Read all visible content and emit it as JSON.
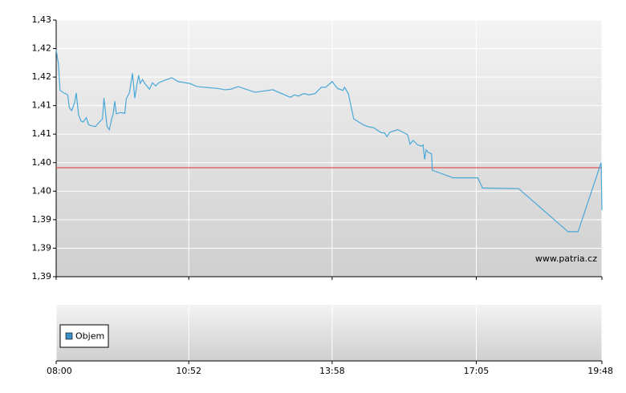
{
  "chart_data": [
    {
      "type": "line",
      "x": [
        "08:00",
        "08:03",
        "08:05",
        "08:10",
        "08:15",
        "08:17",
        "08:20",
        "08:24",
        "08:26",
        "08:29",
        "08:32",
        "08:35",
        "08:39",
        "08:42",
        "08:46",
        "08:51",
        "08:56",
        "09:00",
        "09:02",
        "09:06",
        "09:09",
        "09:12",
        "09:14",
        "09:16",
        "09:18",
        "09:23",
        "09:29",
        "09:31",
        "09:35",
        "09:39",
        "09:42",
        "09:45",
        "09:47",
        "09:49",
        "09:52",
        "09:55",
        "10:01",
        "10:05",
        "10:09",
        "10:13",
        "10:21",
        "10:30",
        "10:38",
        "10:53",
        "11:03",
        "11:30",
        "11:39",
        "11:47",
        "11:56",
        "12:18",
        "12:41",
        "13:04",
        "13:09",
        "13:14",
        "13:21",
        "13:28",
        "13:36",
        "13:44",
        "13:50",
        "13:58",
        "14:05",
        "14:12",
        "14:14",
        "14:19",
        "14:26",
        "14:38",
        "14:44",
        "14:52",
        "15:02",
        "15:06",
        "15:09",
        "15:13",
        "15:23",
        "15:30",
        "15:36",
        "15:39",
        "15:43",
        "15:49",
        "15:54",
        "15:56",
        "15:58",
        "16:00",
        "16:03",
        "16:07",
        "16:08",
        "16:35",
        "17:07",
        "17:13",
        "18:00",
        "19:04",
        "19:17",
        "19:47",
        "19:48"
      ],
      "series": [
        {
          "color": "#4aa8d8",
          "values": [
            1.4208,
            1.4185,
            1.4144,
            1.414,
            1.4137,
            1.4117,
            1.4112,
            1.4125,
            1.414,
            1.4106,
            1.4096,
            1.4094,
            1.4101,
            1.409,
            1.4088,
            1.4087,
            1.4094,
            1.4099,
            1.4132,
            1.4087,
            1.4082,
            1.4099,
            1.4107,
            1.4127,
            1.4107,
            1.4109,
            1.4108,
            1.4131,
            1.414,
            1.4171,
            1.4132,
            1.4155,
            1.4168,
            1.4155,
            1.4161,
            1.4155,
            1.4146,
            1.4156,
            1.4151,
            1.4156,
            1.416,
            1.4164,
            1.4158,
            1.4155,
            1.415,
            1.4147,
            1.4145,
            1.4146,
            1.415,
            1.4141,
            1.4145,
            1.4133,
            1.4137,
            1.4135,
            1.4139,
            1.4137,
            1.4139,
            1.4149,
            1.4149,
            1.4158,
            1.4147,
            1.4144,
            1.4149,
            1.4139,
            1.4099,
            1.409,
            1.4087,
            1.4085,
            1.4077,
            1.4077,
            1.4071,
            1.4078,
            1.4082,
            1.4078,
            1.4074,
            1.4059,
            1.4065,
            1.4058,
            1.4056,
            1.4058,
            1.4035,
            1.405,
            1.4046,
            1.4044,
            1.4018,
            1.4006,
            1.4006,
            1.399,
            1.3989,
            1.3921,
            1.3921,
            1.403,
            1.3955
          ]
        }
      ],
      "reference_line": {
        "value": 1.4022,
        "color": "#d9534f"
      },
      "xlim": [
        "08:00",
        "19:48"
      ],
      "xticks": [
        "08:00",
        "10:52",
        "13:58",
        "17:05",
        "19:48"
      ],
      "ylim": [
        1.385,
        1.4255
      ],
      "yticks": [
        {
          "value": 1.385,
          "label": "1,39"
        },
        {
          "value": 1.3895,
          "label": "1,39"
        },
        {
          "value": 1.394,
          "label": "1,39"
        },
        {
          "value": 1.3985,
          "label": "1,40"
        },
        {
          "value": 1.403,
          "label": "1,40"
        },
        {
          "value": 1.4075,
          "label": "1,41"
        },
        {
          "value": 1.412,
          "label": "1,41"
        },
        {
          "value": 1.4165,
          "label": "1,42"
        },
        {
          "value": 1.421,
          "label": "1,42"
        },
        {
          "value": 1.4255,
          "label": "1,43"
        }
      ],
      "grid": true,
      "watermark": "www.patria.cz"
    },
    {
      "type": "bar",
      "series": [
        {
          "name": "Objem",
          "color": "#3d8fc7",
          "values": []
        }
      ],
      "legend": "left"
    }
  ]
}
